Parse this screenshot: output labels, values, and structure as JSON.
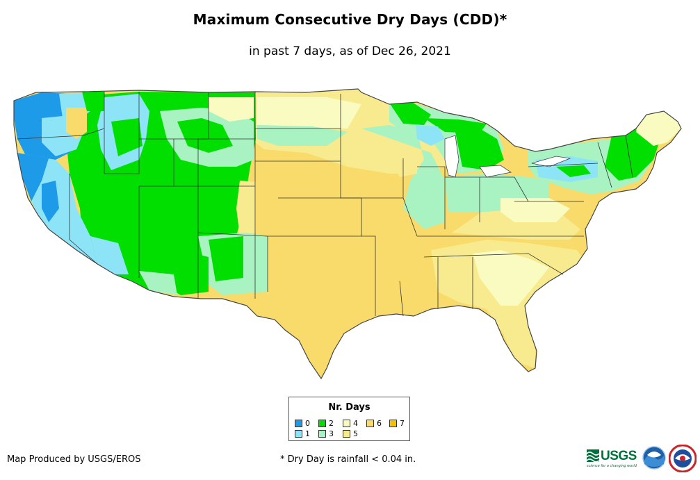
{
  "header": {
    "title": "Maximum Consecutive Dry Days (CDD)*",
    "subtitle": "in past 7 days, as of Dec 26, 2021"
  },
  "legend": {
    "title": "Nr. Days",
    "items": [
      {
        "label": "0",
        "color": "#1e9be8"
      },
      {
        "label": "1",
        "color": "#8ee4f7"
      },
      {
        "label": "2",
        "color": "#00df00"
      },
      {
        "label": "3",
        "color": "#a9f2c2"
      },
      {
        "label": "4",
        "color": "#fafbc0"
      },
      {
        "label": "5",
        "color": "#f8ea8e"
      },
      {
        "label": "6",
        "color": "#f8db6a"
      },
      {
        "label": "7",
        "color": "#f7c000"
      }
    ]
  },
  "footer": {
    "credit": "Map Produced by USGS/EROS",
    "footnote": "* Dry Day is rainfall < 0.04 in.",
    "usgs_logo_text": "USGS",
    "usgs_tagline": "science for a changing world"
  },
  "colors": {
    "border": "#333333",
    "map_outline": "#444444"
  }
}
